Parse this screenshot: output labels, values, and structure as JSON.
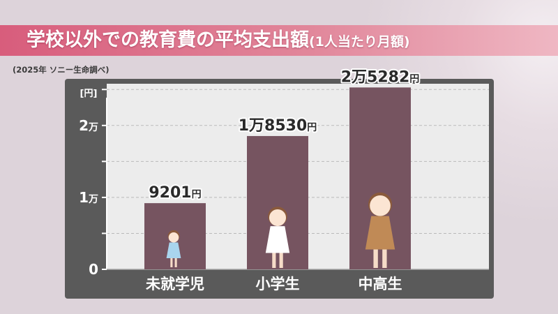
{
  "title": {
    "main": "学校以外での教育費の平均支出額",
    "sub": "(1人当たり月額)"
  },
  "source": "(2025年 ソニー生命調べ)",
  "colors": {
    "bar": "#765460",
    "title_bar": "#d85d7c",
    "panel": "#5a5a5a",
    "plot_bg": "#ececec"
  },
  "chart_data": {
    "type": "bar",
    "title": "学校以外での教育費の平均支出額(1人当たり月額)",
    "xlabel": "",
    "ylabel": "[円]",
    "categories": [
      "未就学児",
      "小学生",
      "中高生"
    ],
    "values": [
      9201,
      18530,
      25282
    ],
    "data_labels": [
      {
        "number": "9201",
        "unit": "円"
      },
      {
        "number": "1万8530",
        "unit": "円"
      },
      {
        "number": "2万5282",
        "unit": "円"
      }
    ],
    "y_ticks": [
      {
        "value": 0,
        "number": "0",
        "unit": ""
      },
      {
        "value": 10000,
        "number": "1",
        "unit": "万"
      },
      {
        "value": 20000,
        "number": "2",
        "unit": "万"
      }
    ],
    "ylim": [
      0,
      25800
    ],
    "grid": true,
    "legend": "none"
  }
}
